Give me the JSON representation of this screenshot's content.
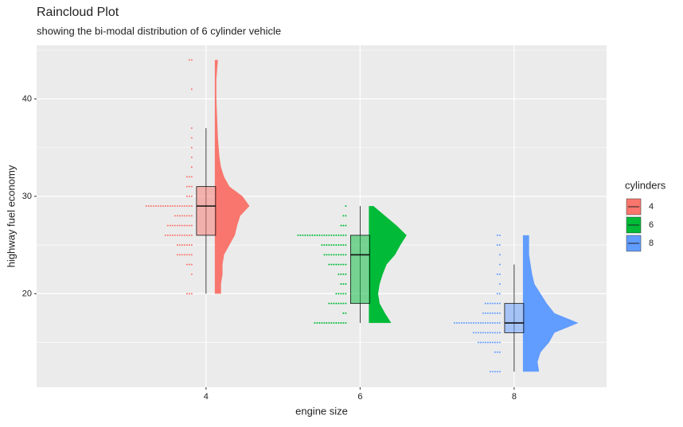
{
  "chart_data": {
    "type": "raincloud",
    "title": "Raincloud Plot",
    "subtitle": "showing the bi-modal distribution of 6 cylinder vehicle",
    "x_label": "engine size",
    "y_label": "highway fuel economy",
    "legend_title": "cylinders",
    "xlim": [
      1.8,
      9.2
    ],
    "xticks": [
      4,
      6,
      8
    ],
    "ylim": [
      10.4,
      45.5
    ],
    "yticks": [
      20,
      30,
      40
    ],
    "y_minor_ticks": [
      15,
      25,
      35,
      45
    ],
    "grid": true,
    "series": [
      {
        "name": "4",
        "x": 4,
        "color": "#F8766D",
        "whisker_low": 20,
        "q1": 26,
        "median": 29,
        "q3": 31,
        "whisker_high": 37,
        "dots": [
          44,
          41,
          37,
          36,
          35,
          34,
          33,
          32,
          31,
          30,
          29,
          28,
          27,
          26,
          25,
          24,
          23,
          22,
          20
        ],
        "dot_counts": [
          2,
          1,
          1,
          1,
          1,
          1,
          1,
          3,
          3,
          3,
          20,
          8,
          11,
          12,
          7,
          7,
          3,
          1,
          3
        ],
        "density_y": [
          20,
          21,
          22,
          23,
          24,
          25,
          26,
          27,
          28,
          29,
          30,
          31,
          32,
          33,
          34,
          36,
          38,
          40,
          42,
          44
        ],
        "density": [
          0.08,
          0.08,
          0.1,
          0.1,
          0.12,
          0.19,
          0.26,
          0.29,
          0.33,
          0.45,
          0.36,
          0.19,
          0.12,
          0.08,
          0.06,
          0.04,
          0.03,
          0.02,
          0.02,
          0.04
        ]
      },
      {
        "name": "6",
        "x": 6,
        "color": "#00BA38",
        "whisker_low": 17,
        "q1": 19,
        "median": 24,
        "q3": 26,
        "whisker_high": 29,
        "dots": [
          29,
          28,
          27,
          26,
          25,
          24,
          23,
          22,
          21,
          20,
          19,
          18,
          17
        ],
        "dot_counts": [
          1,
          2,
          3,
          21,
          11,
          10,
          8,
          4,
          3,
          5,
          8,
          2,
          14
        ],
        "density_y": [
          17,
          18,
          19,
          20,
          21,
          22,
          23,
          24,
          25,
          26,
          27,
          28,
          29
        ],
        "density": [
          0.29,
          0.21,
          0.14,
          0.12,
          0.14,
          0.18,
          0.23,
          0.34,
          0.41,
          0.49,
          0.36,
          0.21,
          0.06
        ]
      },
      {
        "name": "8",
        "x": 8,
        "color": "#619CFF",
        "whisker_low": 12,
        "q1": 16,
        "median": 17,
        "q3": 19,
        "whisker_high": 23,
        "dots": [
          26,
          25,
          24,
          23,
          22,
          21,
          20,
          19,
          18,
          17,
          16,
          15,
          14,
          12
        ],
        "dot_counts": [
          2,
          2,
          1,
          1,
          2,
          1,
          2,
          7,
          8,
          20,
          12,
          10,
          3,
          5
        ],
        "density_y": [
          12,
          13,
          14,
          15,
          16,
          17,
          18,
          19,
          20,
          21,
          22,
          23,
          24,
          25,
          26
        ],
        "density": [
          0.21,
          0.19,
          0.23,
          0.34,
          0.41,
          0.72,
          0.41,
          0.31,
          0.23,
          0.15,
          0.12,
          0.1,
          0.08,
          0.08,
          0.08
        ]
      }
    ]
  }
}
